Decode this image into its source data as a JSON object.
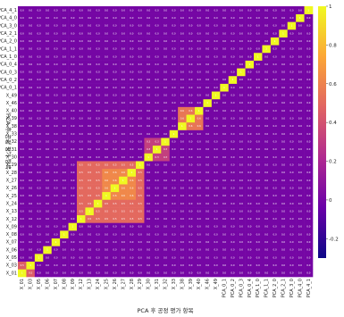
{
  "chart_data": {
    "type": "heatmap",
    "title": "",
    "xlabel": "PCA 후 공정 평가 항목",
    "ylabel": "PCA 후 공정 평가 항목",
    "labels": [
      "X_01",
      "X_03",
      "X_05",
      "X_06",
      "X_07",
      "X_08",
      "X_09",
      "X_12",
      "X_13",
      "X_24",
      "X_25",
      "X_26",
      "X_27",
      "X_28",
      "X_29",
      "X_30",
      "X_31",
      "X_32",
      "X_33",
      "X_38",
      "X_39",
      "X_40",
      "X_46",
      "X_49",
      "PCA_0_1",
      "PCA_0_2",
      "PCA_0_3",
      "PCA_0_4",
      "PCA_1_0",
      "PCA_1_1",
      "PCA_2_0",
      "PCA_2_1",
      "PCA_3_0",
      "PCA_4_0",
      "PCA_4_1"
    ],
    "color_scale": [
      "#0d0887",
      "#6a00a8",
      "#b12a90",
      "#e16462",
      "#fca636",
      "#f0f921"
    ],
    "colorbar_ticks": [
      "1",
      "0.8",
      "0.6",
      "0.4",
      "0.2",
      "0",
      "-0.2"
    ],
    "vmin": -0.3,
    "vmax": 1.0,
    "blocks": [
      {
        "from": "X_01",
        "to": "X_03",
        "value": 0.45
      },
      {
        "from": "X_12",
        "to": "X_29",
        "value": 0.5
      },
      {
        "from": "X_25",
        "to": "X_28",
        "value": 0.62
      },
      {
        "from": "X_30",
        "to": "X_32",
        "value": 0.32
      },
      {
        "from": "X_38",
        "to": "X_40",
        "value": 0.55
      }
    ],
    "background_value": 0.0
  }
}
